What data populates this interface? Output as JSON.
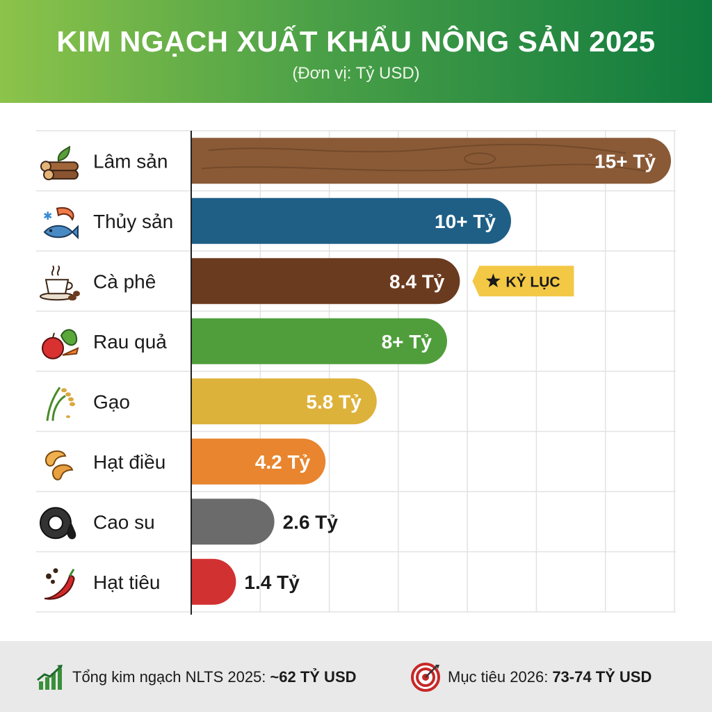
{
  "header": {
    "title": "KIM NGẠCH XUẤT KHẨU NÔNG SẢN 2025",
    "subtitle": "(Đơn vị: Tỷ USD)"
  },
  "chart_data": {
    "type": "bar",
    "orientation": "horizontal",
    "title": "KIM NGẠCH XUẤT KHẨU NÔNG SẢN 2025",
    "subtitle": "(Đơn vị: Tỷ USD)",
    "categories": [
      "Lâm sản",
      "Thủy sản",
      "Cà phê",
      "Rau quả",
      "Gạo",
      "Hạt điều",
      "Cao su",
      "Hạt tiêu"
    ],
    "values": [
      15,
      10,
      8.4,
      8,
      5.8,
      4.2,
      2.6,
      1.4
    ],
    "value_labels": [
      "15+ Tỷ",
      "10+ Tỷ",
      "8.4 Tỷ",
      "8+ Tỷ",
      "5.8 Tỷ",
      "4.2 Tỷ",
      "2.6 Tỷ",
      "1.4 Tỷ"
    ],
    "colors": [
      "#8a5a37",
      "#1f5f86",
      "#6b3b1f",
      "#4f9e3b",
      "#ddb23a",
      "#e8852e",
      "#6b6b6b",
      "#d23131"
    ],
    "icons": [
      "wood-logs-icon",
      "seafood-icon",
      "coffee-cup-icon",
      "fruit-vegetable-icon",
      "rice-plant-icon",
      "cashew-icon",
      "tire-icon",
      "chili-pepper-icon"
    ],
    "annotations": [
      {
        "category": "Cà phê",
        "text": "KỶ LỤC",
        "icon": "star-icon",
        "color": "#f3c845"
      }
    ],
    "xlim": [
      0,
      15
    ],
    "grid": true
  },
  "footer": {
    "total_label": "Tổng kim ngạch NLTS 2025:",
    "total_value": "~62 TỶ USD",
    "total_icon": "growth-chart-icon",
    "target_label": "Mục tiêu 2026:",
    "target_value": "73-74 TỶ USD",
    "target_icon": "target-icon"
  }
}
